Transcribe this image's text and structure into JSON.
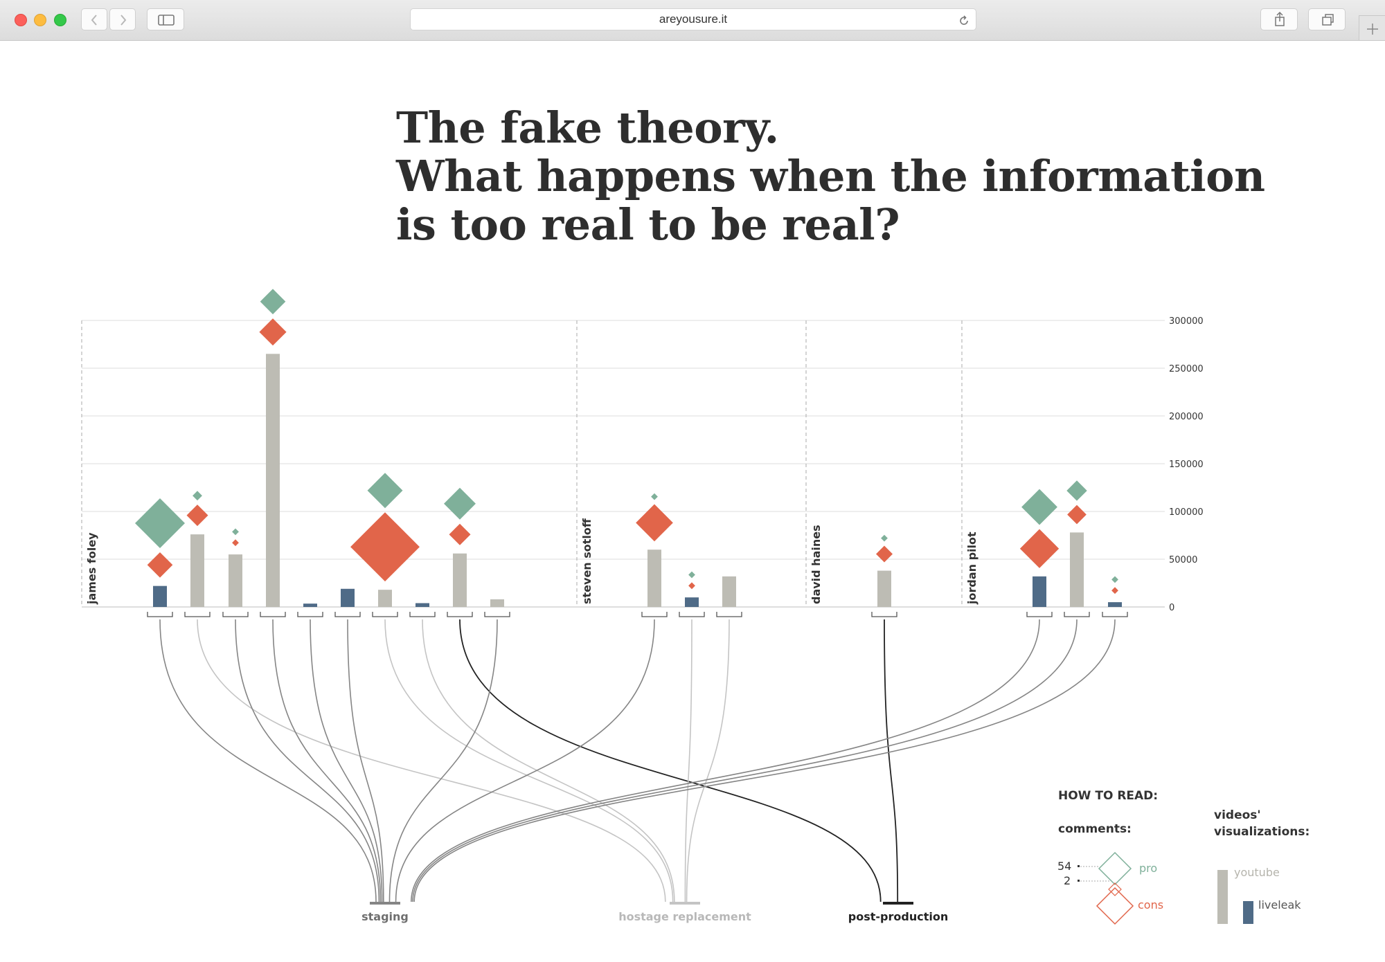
{
  "browser": {
    "url": "areyousure.it"
  },
  "page": {
    "title_lines": [
      "The fake theory.",
      "What happens when the information",
      "is too real to be real?"
    ]
  },
  "colors": {
    "youtube": "#bdbcb4",
    "liveleak": "#4f6b87",
    "pro": "#7fb09a",
    "cons": "#e1654a",
    "staging": "#858585",
    "hostage": "#c4c4c4",
    "postproduction": "#222222"
  },
  "chart_data": {
    "type": "bar",
    "ylim": [
      0,
      300000
    ],
    "yticks": [
      "300000",
      "250000",
      "200000",
      "150000",
      "100000",
      "50000",
      "0"
    ],
    "groups": [
      {
        "name": "james foley",
        "videos": [
          {
            "platform": "liveleak",
            "views": 22000,
            "pro": 54,
            "cons": 14,
            "category": "staging"
          },
          {
            "platform": "youtube",
            "views": 76000,
            "pro": 2,
            "cons": 10,
            "category": "hostage replacement"
          },
          {
            "platform": "youtube",
            "views": 55000,
            "pro": 1,
            "cons": 1,
            "category": "staging"
          },
          {
            "platform": "youtube",
            "views": 265000,
            "pro": 14,
            "cons": 16,
            "category": "staging"
          },
          {
            "platform": "liveleak",
            "views": 3500,
            "pro": 0,
            "cons": 0,
            "category": "staging"
          },
          {
            "platform": "liveleak",
            "views": 19000,
            "pro": 0,
            "cons": 0,
            "category": "staging"
          },
          {
            "platform": "youtube",
            "views": 18000,
            "pro": 27,
            "cons": 104,
            "category": "hostage replacement"
          },
          {
            "platform": "liveleak",
            "views": 4000,
            "pro": 0,
            "cons": 0,
            "category": "hostage replacement"
          },
          {
            "platform": "youtube",
            "views": 56000,
            "pro": 22,
            "cons": 10,
            "category": "post-production"
          },
          {
            "platform": "youtube",
            "views": 8000,
            "pro": 0,
            "cons": 0,
            "category": "staging"
          }
        ]
      },
      {
        "name": "steven sotloff",
        "videos": [
          {
            "platform": "youtube",
            "views": 60000,
            "pro": 1,
            "cons": 30,
            "category": "staging"
          },
          {
            "platform": "liveleak",
            "views": 10000,
            "pro": 1,
            "cons": 1,
            "category": "hostage replacement"
          },
          {
            "platform": "youtube",
            "views": 32000,
            "pro": 0,
            "cons": 0,
            "category": "hostage replacement"
          }
        ]
      },
      {
        "name": "david haines",
        "videos": [
          {
            "platform": "youtube",
            "views": 38000,
            "pro": 1,
            "cons": 6,
            "category": "post-production"
          }
        ]
      },
      {
        "name": "jordan pilot",
        "videos": [
          {
            "platform": "liveleak",
            "views": 32000,
            "pro": 28,
            "cons": 33,
            "category": "staging"
          },
          {
            "platform": "youtube",
            "views": 78000,
            "pro": 9,
            "cons": 8,
            "category": "staging"
          },
          {
            "platform": "liveleak",
            "views": 5000,
            "pro": 1,
            "cons": 1,
            "category": "staging"
          }
        ]
      }
    ],
    "categories": [
      "staging",
      "hostage replacement",
      "post-production"
    ]
  },
  "legend": {
    "heading": "HOW TO READ:",
    "comments_label": "comments:",
    "pro_label": "pro",
    "cons_label": "cons",
    "max_value": "54",
    "min_value": "2",
    "views_label_line1": "videos'",
    "views_label_line2": "visualizations:",
    "youtube_label": "youtube",
    "liveleak_label": "liveleak"
  }
}
